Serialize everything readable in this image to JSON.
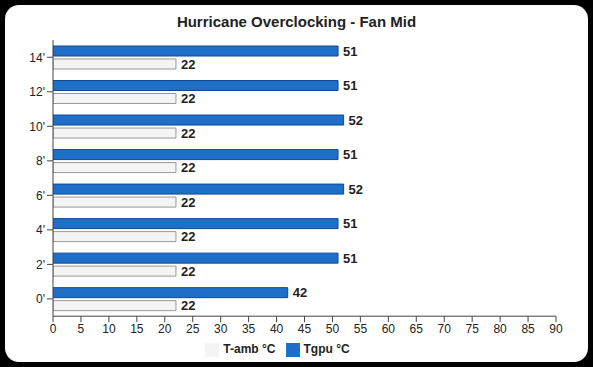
{
  "chart_data": {
    "type": "bar",
    "title": "Hurricane Overclocking - Fan Mid",
    "orientation": "horizontal",
    "categories": [
      "0'",
      "2'",
      "4'",
      "6'",
      "8'",
      "10'",
      "12'",
      "14'"
    ],
    "series": [
      {
        "name": "Tgpu °C",
        "color": "#1f6fc8",
        "values": [
          42,
          51,
          51,
          52,
          51,
          52,
          51,
          51
        ]
      },
      {
        "name": "T-amb °C",
        "color": "#f4f4f4",
        "values": [
          22,
          22,
          22,
          22,
          22,
          22,
          22,
          22
        ]
      }
    ],
    "xlim": [
      0,
      90
    ],
    "xticks": [
      0,
      5,
      10,
      15,
      20,
      25,
      30,
      35,
      40,
      45,
      50,
      55,
      60,
      65,
      70,
      75,
      80,
      85,
      90
    ],
    "grid": false,
    "legend": "bottom",
    "data_labels": true
  }
}
